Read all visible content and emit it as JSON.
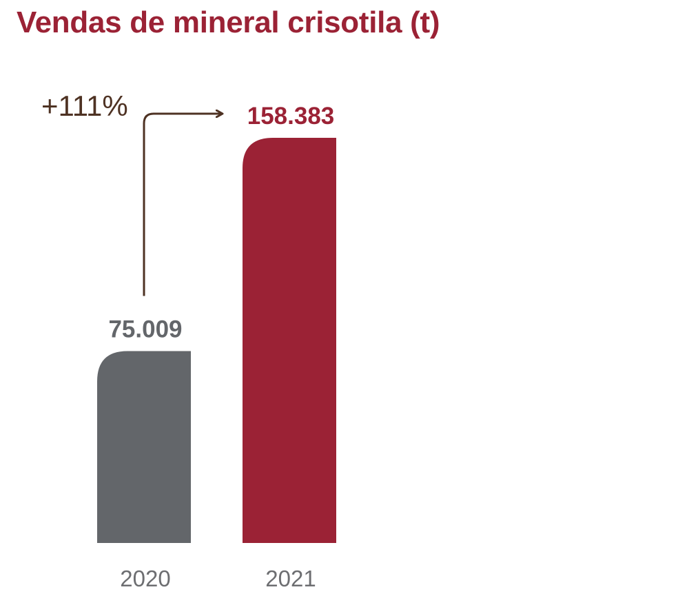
{
  "chart_data": {
    "type": "bar",
    "title": "Vendas de mineral crisotila (t)",
    "categories": [
      "2020",
      "2021"
    ],
    "values": [
      75009,
      158383
    ],
    "value_labels": [
      "75.009",
      "158.383"
    ],
    "bar_colors": [
      "#63666a",
      "#9b2235"
    ],
    "annotation": {
      "text": "+111%",
      "from": "2020",
      "to": "2021",
      "color": "#4e3223"
    },
    "xlabel": "",
    "ylabel": "",
    "ylim": [
      0,
      158383
    ],
    "grid": false,
    "legend": "none"
  },
  "colors": {
    "title": "#9b2235",
    "tick_label": "#6d6e71"
  }
}
